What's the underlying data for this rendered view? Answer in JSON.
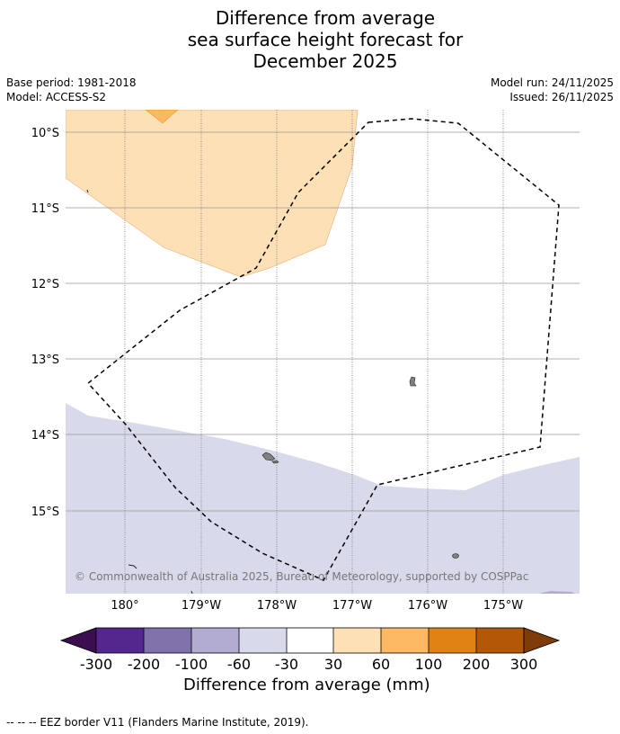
{
  "header": {
    "title_line1": "Difference from average",
    "title_line2": "sea surface height forecast for",
    "title_line3": "December 2025"
  },
  "meta": {
    "base_period": "Base period: 1981-2018",
    "model": "Model: ACCESS-S2",
    "model_run": "Model run: 24/11/2025",
    "issued": "Issued: 26/11/2025"
  },
  "map": {
    "lat_labels": [
      "10°S",
      "11°S",
      "12°S",
      "13°S",
      "14°S",
      "15°S"
    ],
    "lon_labels": [
      "180°",
      "179°W",
      "178°W",
      "177°W",
      "176°W",
      "175°W"
    ],
    "copyright": "© Commonwealth of Australia 2025, Bureau of Meteorology, supported by COSPPac"
  },
  "colorbar": {
    "title": "Difference from average (mm)",
    "labels": [
      "-300",
      "-200",
      "-100",
      "-60",
      "-30",
      "30",
      "60",
      "100",
      "200",
      "300"
    ],
    "colors": {
      "under": "#3b0f4f",
      "b1": "#54278f",
      "b2": "#8073ac",
      "b3": "#b2abd2",
      "b4": "#d8daeb",
      "b5": "#ffffff",
      "b6": "#fee0b6",
      "b7": "#fdb863",
      "b8": "#e08214",
      "b9": "#b35806",
      "over": "#7f3b08"
    }
  },
  "footnote": "--  --  -- EEZ border V11 (Flanders Marine Institute, 2019)."
}
